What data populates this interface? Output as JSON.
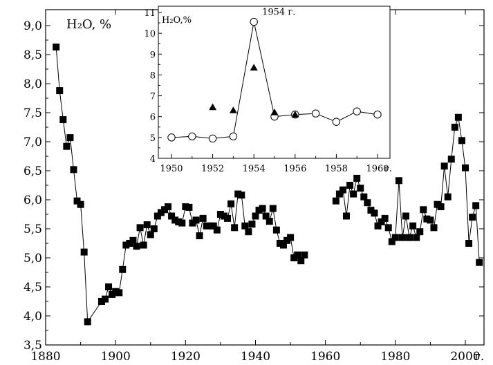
{
  "chart_data": [
    {
      "type": "scatter",
      "title": "",
      "xlabel": "",
      "ylabel": "H₂O,  %",
      "x_unit_label": "г.",
      "xlim": [
        1880,
        2003
      ],
      "ylim": [
        3.5,
        9.2
      ],
      "xticks": [
        1880,
        1900,
        1920,
        1940,
        1960,
        1980,
        2000
      ],
      "xtick_labels": [
        "1880",
        "1900",
        "1920",
        "1940",
        "1960",
        "1980",
        "2000"
      ],
      "yticks": [
        3.5,
        4.0,
        4.5,
        5.0,
        5.5,
        6.0,
        6.5,
        7.0,
        7.5,
        8.0,
        8.5,
        9.0
      ],
      "ytick_labels": [
        "3,5",
        "4,0",
        "4,5",
        "5,0",
        "5,5",
        "6,0",
        "6,5",
        "7,0",
        "7,5",
        "8,0",
        "8,5",
        "9,0"
      ],
      "grid": false,
      "series": [
        {
          "marker": "filled-square",
          "connected": true,
          "color": "#000000",
          "segments": [
            [
              [
                1883,
                8.63
              ],
              [
                1884,
                7.88
              ],
              [
                1885,
                7.38
              ],
              [
                1886,
                6.92
              ],
              [
                1887,
                7.07
              ],
              [
                1888,
                6.52
              ],
              [
                1889,
                5.98
              ],
              [
                1890,
                5.92
              ],
              [
                1891,
                5.1
              ],
              [
                1892,
                3.9
              ],
              [
                1896,
                4.25
              ],
              [
                1897,
                4.29
              ],
              [
                1898,
                4.5
              ],
              [
                1899,
                4.37
              ],
              [
                1900,
                4.42
              ],
              [
                1901,
                4.4
              ],
              [
                1902,
                4.8
              ],
              [
                1903,
                5.22
              ],
              [
                1904,
                5.25
              ],
              [
                1905,
                5.3
              ],
              [
                1906,
                5.2
              ],
              [
                1907,
                5.52
              ],
              [
                1908,
                5.22
              ],
              [
                1909,
                5.57
              ],
              [
                1910,
                5.4
              ],
              [
                1911,
                5.5
              ],
              [
                1912,
                5.72
              ],
              [
                1913,
                5.78
              ],
              [
                1914,
                5.83
              ],
              [
                1915,
                5.88
              ],
              [
                1916,
                5.72
              ],
              [
                1917,
                5.65
              ],
              [
                1918,
                5.62
              ],
              [
                1919,
                5.6
              ],
              [
                1920,
                5.88
              ],
              [
                1921,
                5.87
              ],
              [
                1922,
                5.6
              ],
              [
                1923,
                5.65
              ],
              [
                1924,
                5.38
              ],
              [
                1925,
                5.68
              ],
              [
                1926,
                5.55
              ],
              [
                1927,
                5.55
              ],
              [
                1928,
                5.55
              ],
              [
                1929,
                5.48
              ],
              [
                1930,
                5.75
              ],
              [
                1931,
                5.72
              ],
              [
                1932,
                5.68
              ],
              [
                1933,
                5.93
              ],
              [
                1934,
                5.52
              ],
              [
                1935,
                6.1
              ],
              [
                1936,
                6.08
              ],
              [
                1937,
                5.55
              ],
              [
                1938,
                5.45
              ],
              [
                1939,
                5.58
              ],
              [
                1940,
                5.72
              ],
              [
                1941,
                5.82
              ],
              [
                1942,
                5.85
              ],
              [
                1943,
                5.72
              ],
              [
                1944,
                5.63
              ],
              [
                1945,
                5.85
              ],
              [
                1946,
                5.48
              ],
              [
                1947,
                5.25
              ],
              [
                1948,
                5.22
              ],
              [
                1949,
                5.3
              ],
              [
                1950,
                5.35
              ],
              [
                1951,
                5.0
              ],
              [
                1952,
                5.05
              ],
              [
                1953,
                4.95
              ],
              [
                1954,
                5.05
              ]
            ],
            [
              [
                1963,
                5.98
              ],
              [
                1964,
                6.1
              ],
              [
                1965,
                6.17
              ],
              [
                1966,
                5.72
              ],
              [
                1967,
                6.25
              ],
              [
                1968,
                6.1
              ],
              [
                1969,
                6.37
              ],
              [
                1970,
                6.2
              ],
              [
                1971,
                6.05
              ],
              [
                1972,
                5.95
              ],
              [
                1973,
                5.82
              ],
              [
                1974,
                5.77
              ],
              [
                1975,
                5.55
              ],
              [
                1976,
                5.62
              ],
              [
                1977,
                5.68
              ],
              [
                1978,
                5.52
              ],
              [
                1979,
                5.28
              ],
              [
                1980,
                5.35
              ],
              [
                1981,
                6.33
              ],
              [
                1982,
                5.35
              ],
              [
                1983,
                5.72
              ],
              [
                1984,
                5.35
              ],
              [
                1985,
                5.55
              ],
              [
                1986,
                5.35
              ],
              [
                1987,
                5.45
              ],
              [
                1988,
                5.83
              ],
              [
                1989,
                5.67
              ],
              [
                1990,
                5.65
              ],
              [
                1991,
                5.52
              ],
              [
                1992,
                5.92
              ],
              [
                1993,
                5.88
              ],
              [
                1994,
                6.58
              ],
              [
                1995,
                6.05
              ],
              [
                1996,
                6.7
              ],
              [
                1997,
                7.25
              ],
              [
                1998,
                7.42
              ],
              [
                1999,
                7.02
              ],
              [
                2000,
                6.55
              ],
              [
                2001,
                5.25
              ],
              [
                2002,
                5.7
              ],
              [
                2003,
                5.9
              ],
              [
                2004,
                4.92
              ]
            ]
          ]
        }
      ]
    },
    {
      "type": "scatter",
      "title": "",
      "ylabel": "H₂O,%",
      "x_unit_label": "г.",
      "annotation": "1954 г.",
      "xlim": [
        1950,
        1960
      ],
      "ylim": [
        4,
        11
      ],
      "xticks": [
        1950,
        1952,
        1954,
        1956,
        1958,
        1960
      ],
      "xtick_labels": [
        "1950",
        "1952",
        "1954",
        "1956",
        "1958",
        "1960"
      ],
      "yticks": [
        4,
        5,
        6,
        7,
        8,
        9,
        10,
        11
      ],
      "ytick_labels": [
        "4",
        "5",
        "6",
        "7",
        "8",
        "9",
        "10",
        "11"
      ],
      "grid": false,
      "series": [
        {
          "marker": "open-circle",
          "connected": true,
          "color": "#000000",
          "points": [
            [
              1950,
              5.0
            ],
            [
              1951,
              5.05
            ],
            [
              1952,
              4.95
            ],
            [
              1953,
              5.05
            ],
            [
              1954,
              10.55
            ],
            [
              1955,
              6.0
            ],
            [
              1956,
              6.1
            ],
            [
              1957,
              6.15
            ],
            [
              1958,
              5.75
            ],
            [
              1959,
              6.25
            ],
            [
              1960,
              6.1
            ]
          ]
        },
        {
          "marker": "filled-triangle",
          "connected": false,
          "color": "#000000",
          "points": [
            [
              1952,
              6.45
            ],
            [
              1953,
              6.3
            ],
            [
              1954,
              8.35
            ],
            [
              1955,
              6.2
            ],
            [
              1956,
              6.1
            ]
          ]
        }
      ]
    }
  ]
}
